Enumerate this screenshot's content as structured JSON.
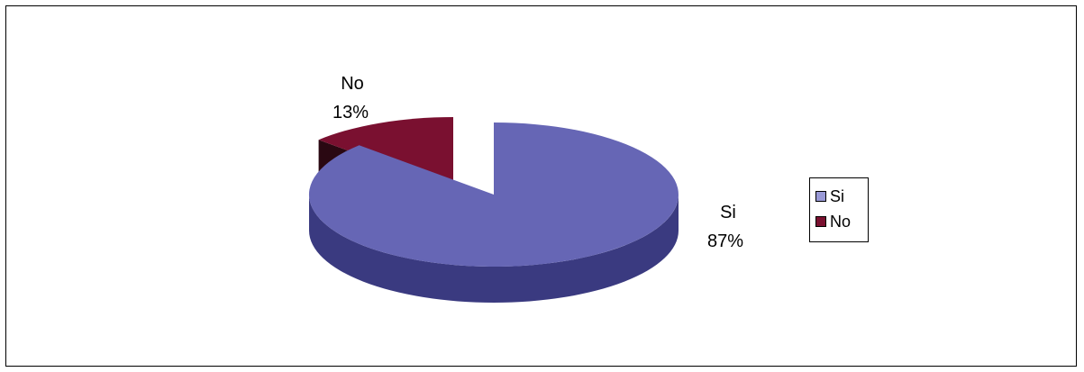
{
  "chart_data": {
    "type": "pie",
    "style": "3d-exploded",
    "categories": [
      "Si",
      "No"
    ],
    "values": [
      87,
      13
    ],
    "unit": "%",
    "data_labels": [
      {
        "category": "Si",
        "percent": "87%"
      },
      {
        "category": "No",
        "percent": "13%"
      }
    ],
    "colors": {
      "Si": {
        "top": "#6666b5",
        "side": "#3a3a80",
        "swatch": "#9999d6"
      },
      "No": {
        "top": "#7a1030",
        "side": "#2a0812",
        "swatch": "#7a1030"
      }
    },
    "legend": {
      "placement": "right",
      "entries": [
        "Si",
        "No"
      ]
    }
  }
}
